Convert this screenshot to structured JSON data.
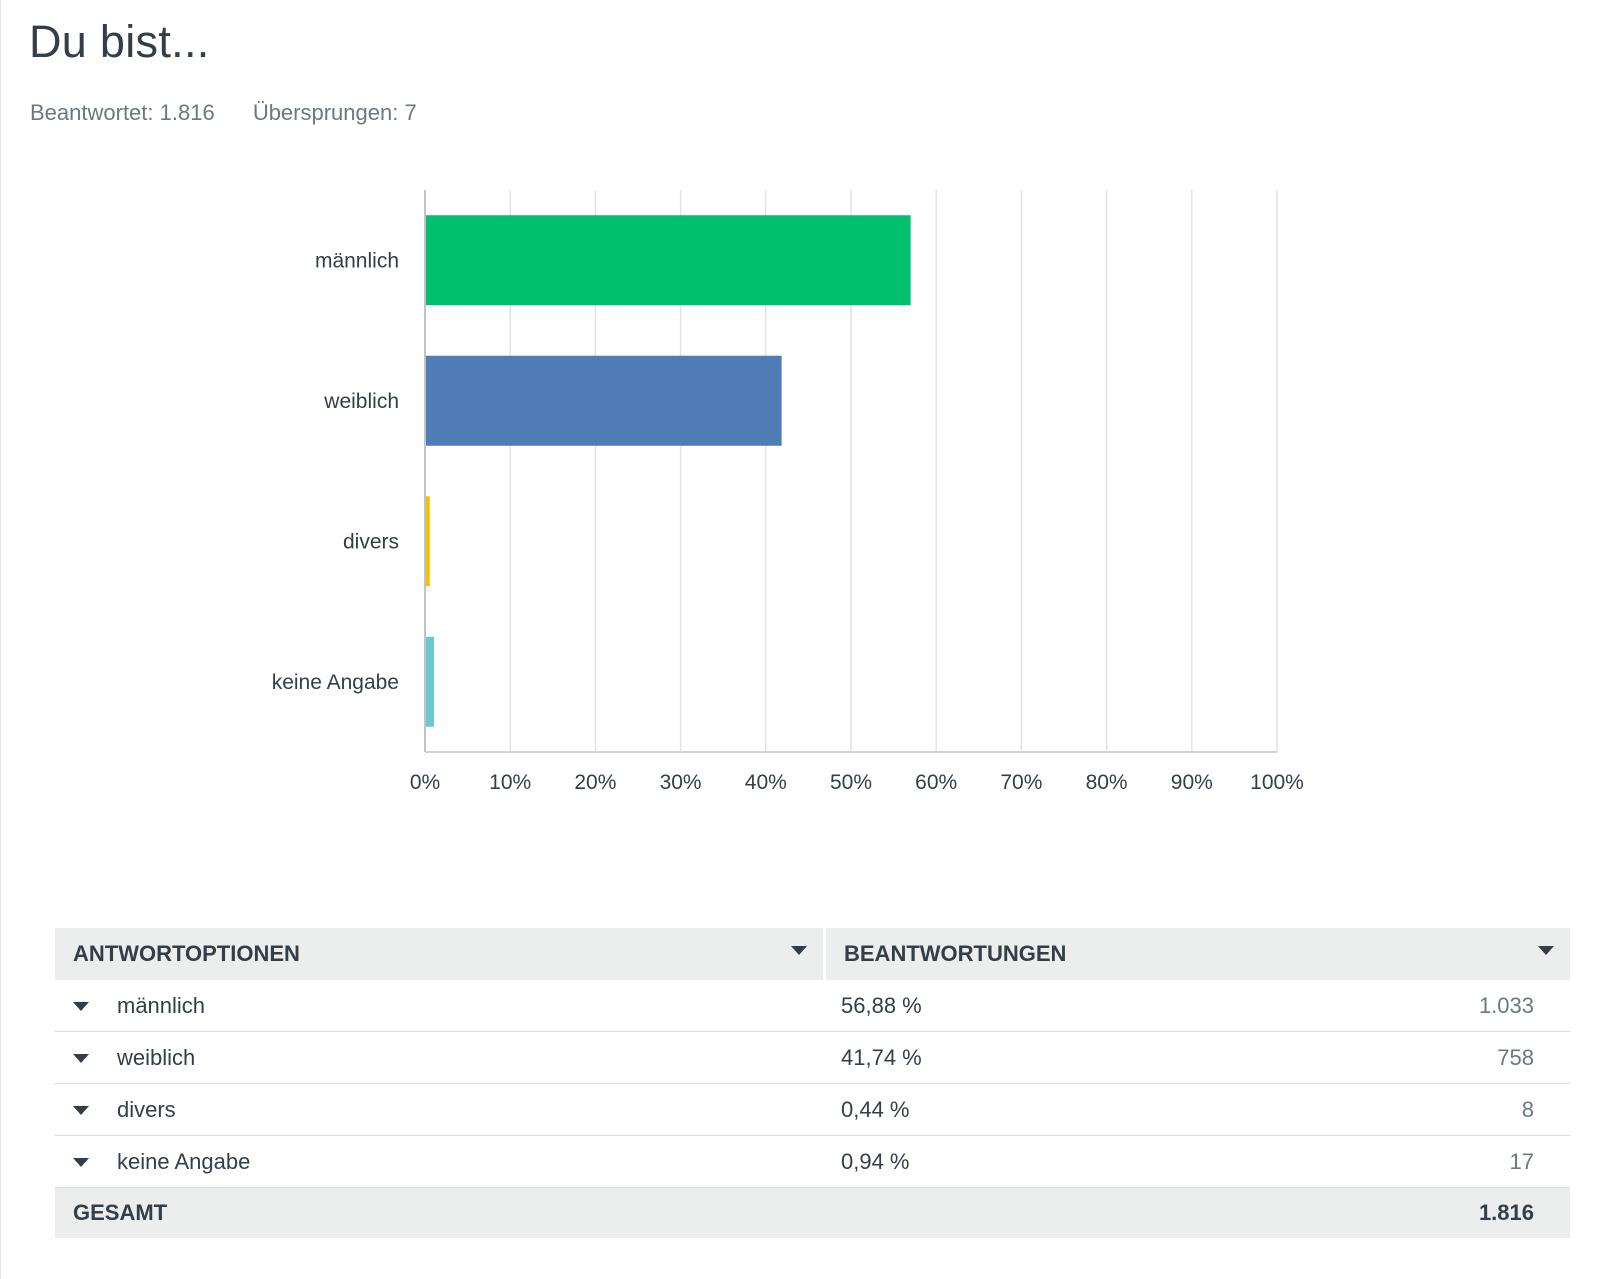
{
  "question": {
    "title": "Du bist...",
    "answered": "Beantwortet: 1.816",
    "skipped": "Übersprungen: 7"
  },
  "chart_data": {
    "type": "bar",
    "orientation": "horizontal",
    "categories": [
      "männlich",
      "weiblich",
      "divers",
      "keine Angabe"
    ],
    "values": [
      56.88,
      41.74,
      0.44,
      0.94
    ],
    "colors": [
      "#00bf6f",
      "#507cb6",
      "#f9be00",
      "#6bc8cd"
    ],
    "xlim": [
      0,
      100
    ],
    "ticks": [
      "0%",
      "10%",
      "20%",
      "30%",
      "40%",
      "50%",
      "60%",
      "70%",
      "80%",
      "90%",
      "100%"
    ],
    "grid": true
  },
  "table": {
    "headers": [
      "ANTWORTOPTIONEN",
      "BEANTWORTUNGEN"
    ],
    "rows": [
      {
        "label": "männlich",
        "percent": "56,88 %",
        "count": "1.033"
      },
      {
        "label": "weiblich",
        "percent": "41,74 %",
        "count": "758"
      },
      {
        "label": "divers",
        "percent": "0,44 %",
        "count": "8"
      },
      {
        "label": "keine Angabe",
        "percent": "0,94 %",
        "count": "17"
      }
    ],
    "total_label": "GESAMT",
    "total_value": "1.816"
  }
}
